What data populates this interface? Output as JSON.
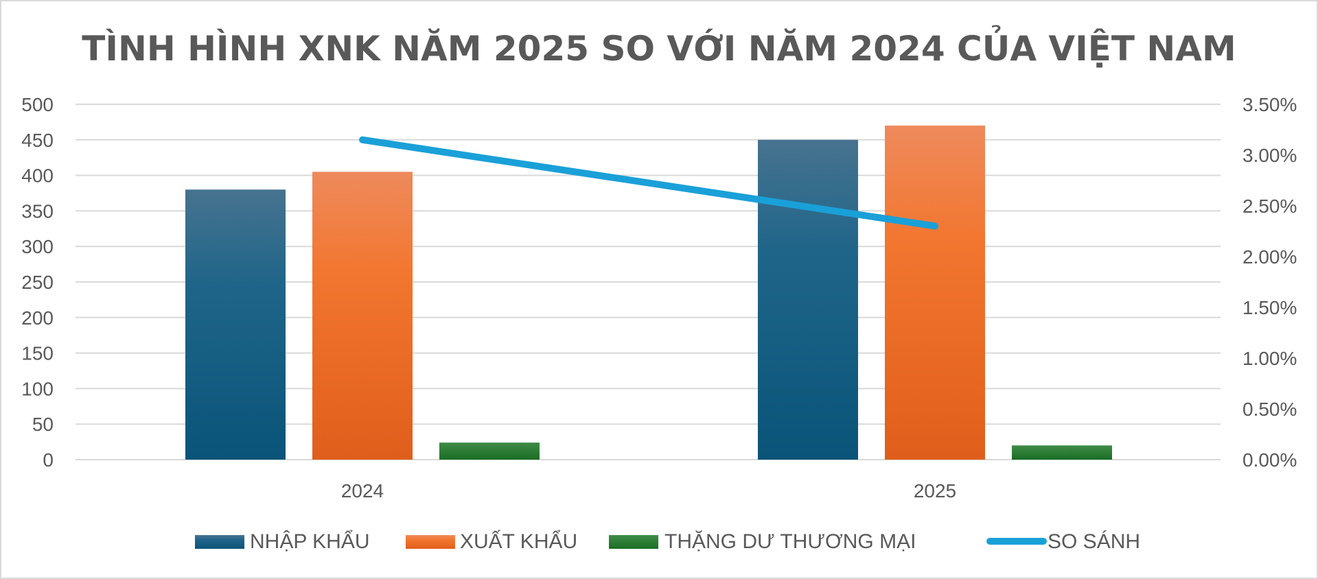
{
  "chart_data": {
    "type": "bar",
    "title": "TÌNH HÌNH XNK NĂM 2025 SO VỚI NĂM 2024 CỦA VIỆT NAM",
    "categories": [
      "2024",
      "2025"
    ],
    "series": [
      {
        "name": "NHẬP KHẨU",
        "type": "bar",
        "axis": "left",
        "color": "#1f5f85",
        "values": [
          380,
          450
        ]
      },
      {
        "name": "XUẤT KHẨU",
        "type": "bar",
        "axis": "left",
        "color": "#f07a34",
        "values": [
          405,
          470
        ]
      },
      {
        "name": "THẶNG DƯ THƯƠNG MẠI",
        "type": "bar",
        "axis": "left",
        "color": "#217a2c",
        "values": [
          24,
          20
        ]
      },
      {
        "name": "SO SÁNH",
        "type": "line",
        "axis": "right",
        "color": "#1aa0d8",
        "values": [
          0.0315,
          0.023
        ]
      }
    ],
    "y_left": {
      "min": 0,
      "max": 500,
      "ticks": [
        "0",
        "50",
        "100",
        "150",
        "200",
        "250",
        "300",
        "350",
        "400",
        "450",
        "500"
      ]
    },
    "y_right": {
      "min": 0,
      "max": 0.035,
      "ticks": [
        "0.00%",
        "0.50%",
        "1.00%",
        "1.50%",
        "2.00%",
        "2.50%",
        "3.00%",
        "3.50%"
      ]
    },
    "grid": true,
    "legend_position": "bottom"
  }
}
